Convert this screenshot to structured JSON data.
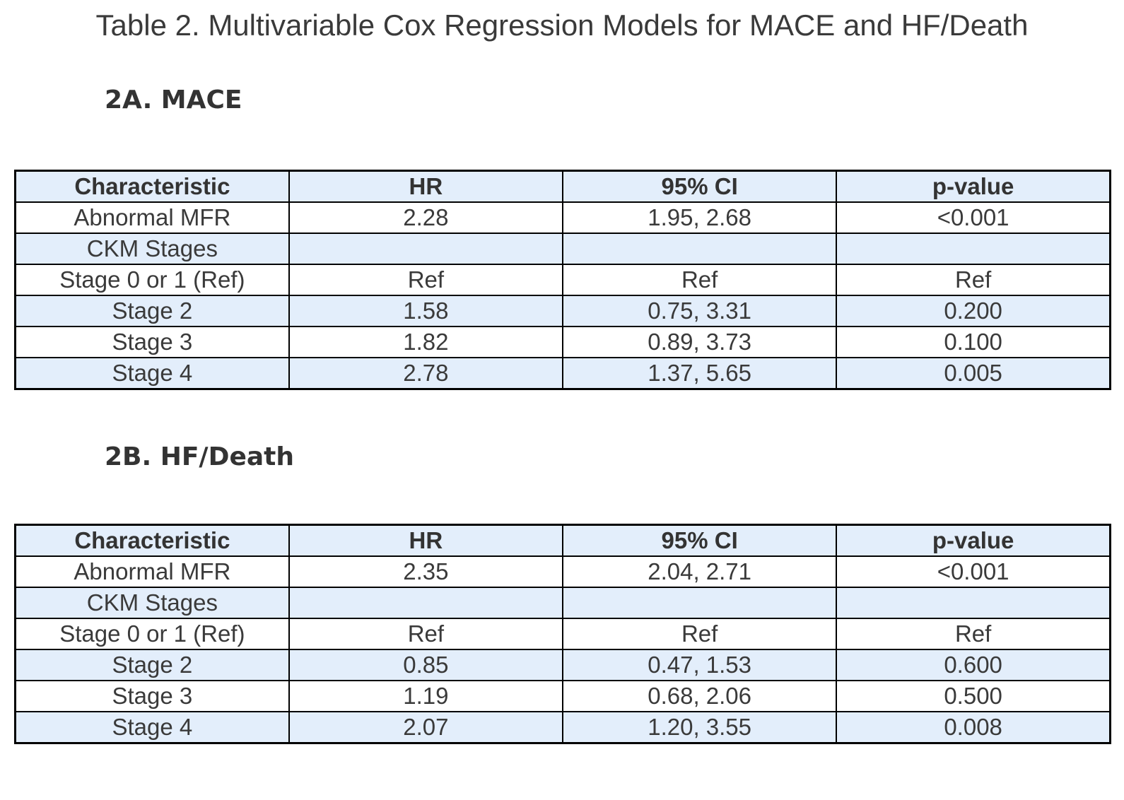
{
  "page": {
    "title": "Table 2. Multivariable Cox Regression Models for MACE and HF/Death"
  },
  "colors": {
    "row_highlight": "#e3eefb",
    "border": "#000000",
    "text": "#3a3a3a"
  },
  "tables": [
    {
      "section_label": "2A. MACE",
      "columns": [
        "Characteristic",
        "HR",
        "95% CI",
        "p-value"
      ],
      "rows": [
        [
          "Abnormal MFR",
          "2.28",
          "1.95, 2.68",
          "<0.001"
        ],
        [
          "CKM Stages",
          "",
          "",
          ""
        ],
        [
          "Stage 0 or 1 (Ref)",
          "Ref",
          "Ref",
          "Ref"
        ],
        [
          "Stage 2",
          "1.58",
          "0.75, 3.31",
          "0.200"
        ],
        [
          "Stage 3",
          "1.82",
          "0.89, 3.73",
          "0.100"
        ],
        [
          "Stage 4",
          "2.78",
          "1.37, 5.65",
          "0.005"
        ]
      ]
    },
    {
      "section_label": "2B. HF/Death",
      "columns": [
        "Characteristic",
        "HR",
        "95% CI",
        "p-value"
      ],
      "rows": [
        [
          "Abnormal MFR",
          "2.35",
          "2.04, 2.71",
          "<0.001"
        ],
        [
          "CKM Stages",
          "",
          "",
          ""
        ],
        [
          "Stage 0 or 1 (Ref)",
          "Ref",
          "Ref",
          "Ref"
        ],
        [
          "Stage 2",
          "0.85",
          "0.47, 1.53",
          "0.600"
        ],
        [
          "Stage 3",
          "1.19",
          "0.68, 2.06",
          "0.500"
        ],
        [
          "Stage 4",
          "2.07",
          "1.20, 3.55",
          "0.008"
        ]
      ]
    }
  ],
  "chart_data": [
    {
      "type": "table",
      "title": "2A. MACE",
      "columns": [
        "Characteristic",
        "HR",
        "95% CI",
        "p-value"
      ],
      "rows": [
        [
          "Abnormal MFR",
          "2.28",
          "1.95, 2.68",
          "<0.001"
        ],
        [
          "CKM Stages",
          "",
          "",
          ""
        ],
        [
          "Stage 0 or 1 (Ref)",
          "Ref",
          "Ref",
          "Ref"
        ],
        [
          "Stage 2",
          "1.58",
          "0.75, 3.31",
          "0.200"
        ],
        [
          "Stage 3",
          "1.82",
          "0.89, 3.73",
          "0.100"
        ],
        [
          "Stage 4",
          "2.78",
          "1.37, 5.65",
          "0.005"
        ]
      ]
    },
    {
      "type": "table",
      "title": "2B. HF/Death",
      "columns": [
        "Characteristic",
        "HR",
        "95% CI",
        "p-value"
      ],
      "rows": [
        [
          "Abnormal MFR",
          "2.35",
          "2.04, 2.71",
          "<0.001"
        ],
        [
          "CKM Stages",
          "",
          "",
          ""
        ],
        [
          "Stage 0 or 1 (Ref)",
          "Ref",
          "Ref",
          "Ref"
        ],
        [
          "Stage 2",
          "0.85",
          "0.47, 1.53",
          "0.600"
        ],
        [
          "Stage 3",
          "1.19",
          "0.68, 2.06",
          "0.500"
        ],
        [
          "Stage 4",
          "2.07",
          "1.20, 3.55",
          "0.008"
        ]
      ]
    }
  ]
}
